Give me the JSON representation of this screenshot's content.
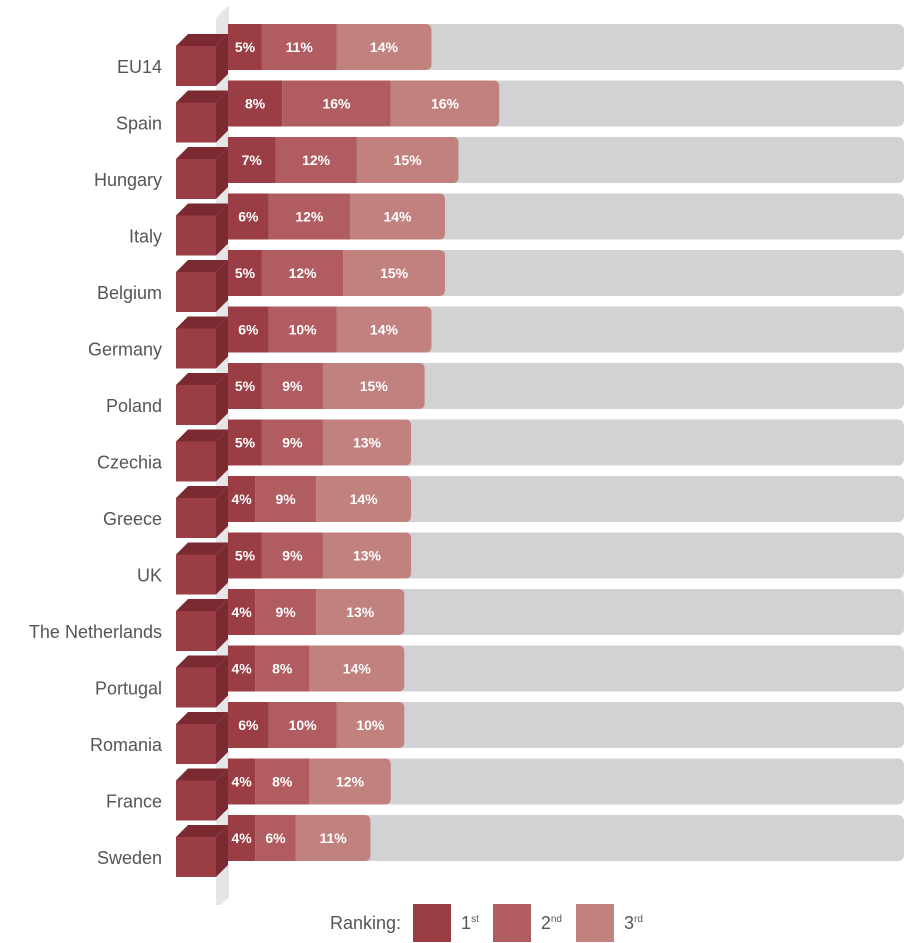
{
  "chart_data": {
    "type": "bar",
    "orientation": "horizontal",
    "stacked": true,
    "categories": [
      "EU14",
      "Spain",
      "Hungary",
      "Italy",
      "Belgium",
      "Germany",
      "Poland",
      "Czechia",
      "Greece",
      "UK",
      "The Netherlands",
      "Portugal",
      "Romania",
      "France",
      "Sweden"
    ],
    "series": [
      {
        "name": "1st",
        "color": "#9b3d44",
        "values": [
          5,
          8,
          7,
          6,
          5,
          6,
          5,
          5,
          4,
          5,
          4,
          4,
          6,
          4,
          4
        ],
        "labels": [
          "5%",
          "8%",
          "7%",
          "6%",
          "5%",
          "6%",
          "5%",
          "5%",
          "4%",
          "5%",
          "4%",
          "4%",
          "6%",
          "4%",
          "4%"
        ]
      },
      {
        "name": "2nd",
        "color": "#b05c60",
        "values": [
          11,
          16,
          12,
          12,
          12,
          10,
          9,
          9,
          9,
          9,
          9,
          8,
          10,
          8,
          6
        ],
        "labels": [
          "11%",
          "16%",
          "12%",
          "12%",
          "12%",
          "10%",
          "9%",
          "9%",
          "9%",
          "9%",
          "9%",
          "8%",
          "10%",
          "8%",
          "6%"
        ]
      },
      {
        "name": "3rd",
        "color": "#c1817f",
        "values": [
          14,
          16,
          15,
          14,
          15,
          14,
          15,
          13,
          14,
          13,
          13,
          14,
          10,
          12,
          11
        ],
        "labels": [
          "14%",
          "16%",
          "15%",
          "14%",
          "15%",
          "14%",
          "15%",
          "13%",
          "14%",
          "13%",
          "13%",
          "14%",
          "10%",
          "12%",
          "11%"
        ]
      }
    ],
    "xlim": [
      0,
      100
    ],
    "background_bar_color": "#d2d2d4",
    "grid": false,
    "legend_position": "bottom"
  },
  "legend": {
    "title": "Ranking:",
    "items": [
      {
        "base": "1",
        "suffix": "st",
        "color": "#9b3d44"
      },
      {
        "base": "2",
        "suffix": "nd",
        "color": "#b05c60"
      },
      {
        "base": "3",
        "suffix": "rd",
        "color": "#c1817f"
      }
    ]
  },
  "colors": {
    "label_text": "#555555",
    "wall": "#e6e6e8",
    "wall_edge": "#d6d6d8",
    "step_front": "#9b3d44",
    "step_top": "#7a2a30"
  }
}
